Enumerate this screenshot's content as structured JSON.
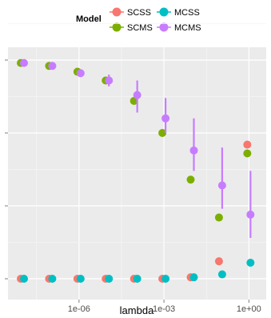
{
  "chart_data": {
    "type": "scatter",
    "xlabel": "lambda",
    "ylabel": "",
    "x_scale": "log10",
    "xlim": [
      1e-08,
      2.0
    ],
    "ylim": [
      0,
      1.0
    ],
    "x_ticks": [
      {
        "value": 1e-06,
        "label": "1e-06"
      },
      {
        "value": 0.001,
        "label": "1e-03"
      },
      {
        "value": 1.0,
        "label": "1e+00"
      }
    ],
    "y_ticks": [
      0.0,
      0.25,
      0.5,
      0.75
    ],
    "y_tick_labels_shown": false,
    "grid": true,
    "legend": {
      "title": "Model",
      "placement": "top",
      "entries": [
        {
          "name": "SCSS",
          "color": "#F8766D"
        },
        {
          "name": "MCSS",
          "color": "#00BFC4"
        },
        {
          "name": "SCMS",
          "color": "#7CAE00"
        },
        {
          "name": "MCMS",
          "color": "#C77CFF"
        }
      ]
    },
    "x": [
      1e-08,
      1e-07,
      1e-06,
      1e-05,
      0.0001,
      0.001,
      0.01,
      0.1,
      1.0
    ],
    "series": [
      {
        "name": "SCSS",
        "color": "#F8766D",
        "values": [
          0.0,
          0.0,
          0.0,
          0.0,
          0.0,
          0.0,
          0.005,
          0.06,
          0.46
        ],
        "x_offset": 0.0
      },
      {
        "name": "SCMS",
        "color": "#7CAE00",
        "values": [
          0.74,
          0.73,
          0.71,
          0.68,
          0.61,
          0.5,
          0.34,
          0.21,
          0.43
        ],
        "x_offset": 0.0
      },
      {
        "name": "MCSS",
        "color": "#00BFC4",
        "values": [
          0.0,
          0.0,
          0.0,
          0.0,
          0.0,
          0.0,
          0.005,
          0.015,
          0.055
        ],
        "x_offset": 0.0
      },
      {
        "name": "MCMS",
        "color": "#C77CFF",
        "values": [
          0.74,
          0.73,
          0.705,
          0.68,
          0.63,
          0.55,
          0.44,
          0.32,
          0.22
        ],
        "lower": [
          0.74,
          0.73,
          0.7,
          0.66,
          0.57,
          0.5,
          0.37,
          0.24,
          0.14
        ],
        "upper": [
          0.74,
          0.73,
          0.71,
          0.7,
          0.68,
          0.62,
          0.55,
          0.45,
          0.37
        ],
        "x_offset": 0.0
      }
    ]
  }
}
